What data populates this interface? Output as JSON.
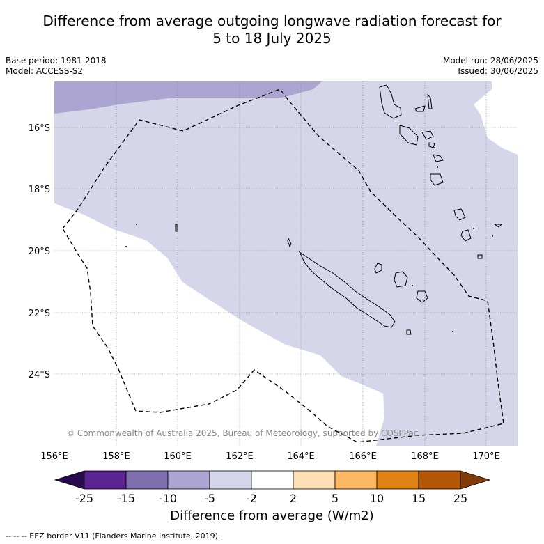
{
  "title_line1": "Difference from average outgoing longwave radiation forecast for",
  "title_line2": "5 to 18 July 2025",
  "base_period": "Base period: 1981-2018",
  "model": "Model: ACCESS-S2",
  "model_run": "Model run: 28/06/2025",
  "issued": "Issued: 30/06/2025",
  "copyright": "© Commonwealth of Australia 2025, Bureau of Meteorology, supported by COSPPac",
  "lon_labels": [
    "156°E",
    "158°E",
    "160°E",
    "162°E",
    "164°E",
    "166°E",
    "168°E",
    "170°E"
  ],
  "lat_labels": [
    "16°S",
    "18°S",
    "20°S",
    "22°S",
    "24°S"
  ],
  "colorbar": {
    "title": "Difference from average (W/m2)",
    "ticks": [
      "-25",
      "-15",
      "-10",
      "-5",
      "-2",
      "2",
      "5",
      "10",
      "15",
      "25"
    ],
    "colors": [
      "#2a0a4e",
      "#5a2590",
      "#7f6fad",
      "#aca5d1",
      "#d6d6ea",
      "#ffffff",
      "#fee0b6",
      "#fdb863",
      "#e08214",
      "#b35806",
      "#7f3b08"
    ]
  },
  "eez_note": "--  --  -- EEZ border V11 (Flanders Marine Institute, 2019).",
  "colors": {
    "light_purple": "#d6d6ea",
    "mid_purple": "#aca5d1"
  }
}
